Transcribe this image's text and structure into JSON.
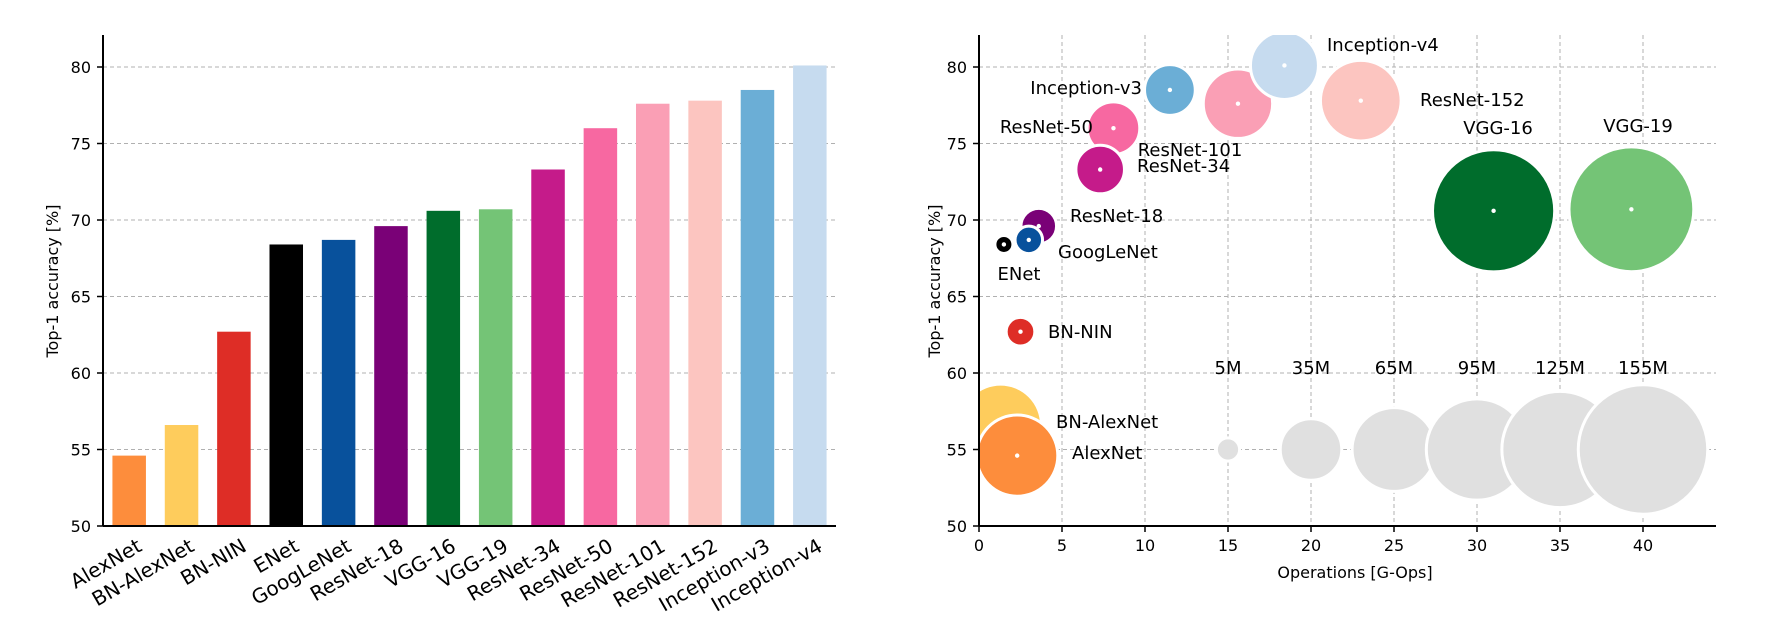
{
  "chart_data": [
    {
      "type": "bar",
      "title": "",
      "xlabel": "",
      "ylabel": "Top-1 accuracy [%]",
      "ylim": [
        50,
        81
      ],
      "yticks": [
        50,
        55,
        60,
        65,
        70,
        75,
        80
      ],
      "grid": "horizontal dashed",
      "categories": [
        "AlexNet",
        "BN-AlexNet",
        "BN-NIN",
        "ENet",
        "GoogLeNet",
        "ResNet-18",
        "VGG-16",
        "VGG-19",
        "ResNet-34",
        "ResNet-50",
        "ResNet-101",
        "ResNet-152",
        "Inception-v3",
        "Inception-v4"
      ],
      "values": [
        54.6,
        56.6,
        62.7,
        68.4,
        68.7,
        69.6,
        70.6,
        70.7,
        73.3,
        76.0,
        77.6,
        77.8,
        78.5,
        80.1
      ],
      "colors": [
        "#fd8d3c",
        "#fecc5c",
        "#de2d26",
        "#000000",
        "#08519c",
        "#7a0177",
        "#006d2c",
        "#74c476",
        "#c51b8a",
        "#f768a1",
        "#fa9fb5",
        "#fcc5c0",
        "#6baed6",
        "#c6dbef"
      ]
    },
    {
      "type": "scatter",
      "title": "",
      "xlabel": "Operations [G-Ops]",
      "ylabel": "Top-1 accuracy [%]",
      "xlim": [
        0,
        44
      ],
      "ylim": [
        50,
        81
      ],
      "xticks": [
        0,
        5,
        10,
        15,
        20,
        25,
        30,
        35,
        40
      ],
      "yticks": [
        50,
        55,
        60,
        65,
        70,
        75,
        80
      ],
      "grid": "dashed both",
      "points": [
        {
          "name": "AlexNet",
          "ops": 2.3,
          "acc": 54.6,
          "params_m": 61,
          "color": "#fd8d3c"
        },
        {
          "name": "BN-AlexNet",
          "ops": 1.3,
          "acc": 56.6,
          "params_m": 62,
          "color": "#fecc5c"
        },
        {
          "name": "BN-NIN",
          "ops": 2.5,
          "acc": 62.7,
          "params_m": 7.6,
          "color": "#de2d26"
        },
        {
          "name": "ENet",
          "ops": 1.5,
          "acc": 68.4,
          "params_m": 0.4,
          "color": "#000000"
        },
        {
          "name": "GoogLeNet",
          "ops": 3.0,
          "acc": 68.7,
          "params_m": 7.0,
          "color": "#08519c"
        },
        {
          "name": "ResNet-18",
          "ops": 3.6,
          "acc": 69.6,
          "params_m": 11.7,
          "color": "#7a0177"
        },
        {
          "name": "VGG-16",
          "ops": 31.0,
          "acc": 70.6,
          "params_m": 138,
          "color": "#006d2c"
        },
        {
          "name": "VGG-19",
          "ops": 39.3,
          "acc": 70.7,
          "params_m": 144,
          "color": "#74c476"
        },
        {
          "name": "ResNet-34",
          "ops": 7.3,
          "acc": 73.3,
          "params_m": 21.8,
          "color": "#c51b8a"
        },
        {
          "name": "ResNet-50",
          "ops": 8.1,
          "acc": 76.0,
          "params_m": 25.6,
          "color": "#f768a1"
        },
        {
          "name": "ResNet-101",
          "ops": 15.6,
          "acc": 77.6,
          "params_m": 44.5,
          "color": "#fa9fb5"
        },
        {
          "name": "ResNet-152",
          "ops": 23.0,
          "acc": 77.8,
          "params_m": 60.2,
          "color": "#fcc5c0"
        },
        {
          "name": "Inception-v3",
          "ops": 11.5,
          "acc": 78.5,
          "params_m": 23.8,
          "color": "#6baed6"
        },
        {
          "name": "Inception-v4",
          "ops": 18.4,
          "acc": 80.1,
          "params_m": 42.7,
          "color": "#c6dbef"
        }
      ],
      "size_legend": {
        "labels": [
          "5M",
          "35M",
          "65M",
          "95M",
          "125M",
          "155M"
        ],
        "params_m": [
          5,
          35,
          65,
          95,
          125,
          155
        ],
        "ops": [
          15,
          20,
          25,
          30,
          35,
          40
        ],
        "acc": 55,
        "color": "#e0e0e0"
      }
    }
  ]
}
